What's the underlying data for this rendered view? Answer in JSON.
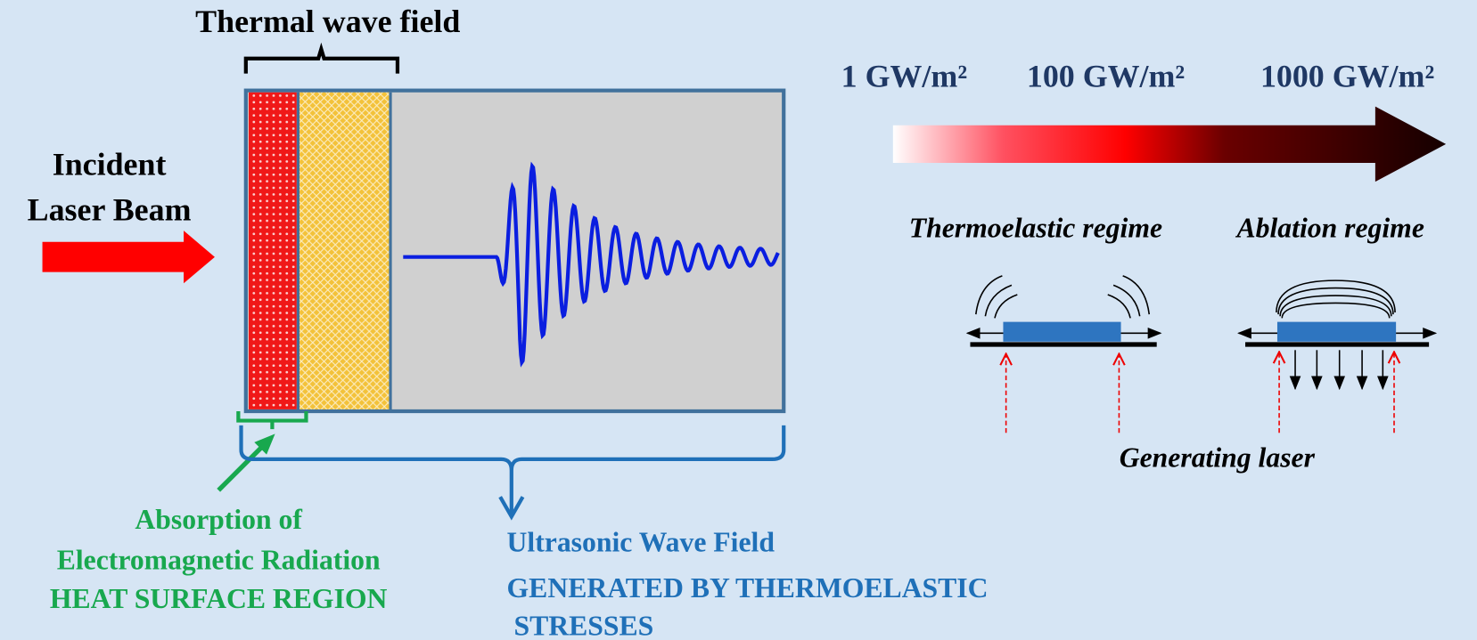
{
  "labels": {
    "thermal_wave_field": "Thermal wave field",
    "incident": [
      "Incident",
      "Laser Beam"
    ],
    "intensities": [
      "1 GW/m²",
      "100 GW/m²",
      "1000 GW/m²"
    ],
    "thermoelastic_regime": "Thermoelastic regime",
    "ablation_regime": "Ablation regime",
    "generating_laser": "Generating laser",
    "absorption": [
      "Absorption of",
      "Electromagnetic Radiation",
      "HEAT SURFACE REGION"
    ],
    "ultrasonic": [
      "Ultrasonic Wave Field",
      "GENERATED BY THERMOELASTIC",
      " STRESSES"
    ]
  }
}
